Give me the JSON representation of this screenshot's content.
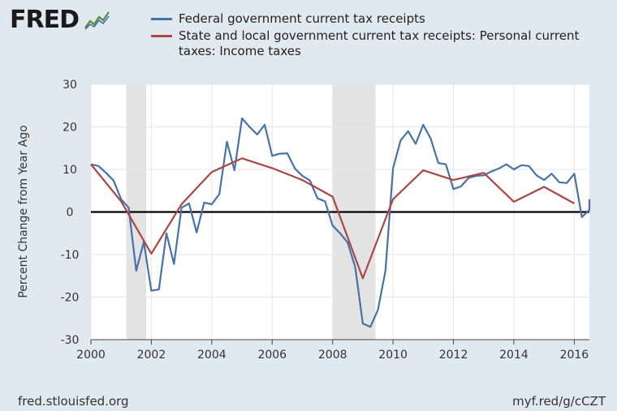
{
  "logo": {
    "text": "FRED"
  },
  "footer": {
    "source": "fred.stlouisfed.org",
    "short_link": "myf.red/g/cCZT"
  },
  "chart_data": {
    "type": "line",
    "ylabel": "Percent Change from Year Ago",
    "xlim": [
      2000,
      2016.5
    ],
    "ylim": [
      -30,
      30
    ],
    "x_ticks": [
      2000,
      2002,
      2004,
      2006,
      2008,
      2010,
      2012,
      2014,
      2016
    ],
    "y_ticks": [
      -30,
      -20,
      -10,
      0,
      10,
      20,
      30
    ],
    "grid": true,
    "legend_position": "top",
    "recessions": [
      [
        2001.17,
        2001.83
      ],
      [
        2008.0,
        2009.42
      ]
    ],
    "series": [
      {
        "name": "Federal government current tax receipts",
        "color": "#4572a7",
        "points": [
          [
            2000.0,
            11.2
          ],
          [
            2000.25,
            10.8
          ],
          [
            2000.5,
            9.2
          ],
          [
            2000.75,
            7.4
          ],
          [
            2001.0,
            3.0
          ],
          [
            2001.25,
            1.0
          ],
          [
            2001.5,
            -13.8
          ],
          [
            2001.75,
            -7.0
          ],
          [
            2002.0,
            -18.5
          ],
          [
            2002.25,
            -18.2
          ],
          [
            2002.5,
            -5.0
          ],
          [
            2002.75,
            -12.2
          ],
          [
            2003.0,
            1.0
          ],
          [
            2003.25,
            2.0
          ],
          [
            2003.5,
            -4.8
          ],
          [
            2003.75,
            2.2
          ],
          [
            2004.0,
            1.8
          ],
          [
            2004.25,
            4.2
          ],
          [
            2004.5,
            16.5
          ],
          [
            2004.75,
            9.8
          ],
          [
            2005.0,
            22.0
          ],
          [
            2005.25,
            20.0
          ],
          [
            2005.5,
            18.2
          ],
          [
            2005.75,
            20.5
          ],
          [
            2006.0,
            13.2
          ],
          [
            2006.25,
            13.7
          ],
          [
            2006.5,
            13.8
          ],
          [
            2006.75,
            10.2
          ],
          [
            2007.0,
            8.5
          ],
          [
            2007.25,
            7.4
          ],
          [
            2007.5,
            3.2
          ],
          [
            2007.75,
            2.5
          ],
          [
            2008.0,
            -3.2
          ],
          [
            2008.25,
            -5.0
          ],
          [
            2008.5,
            -7.2
          ],
          [
            2008.75,
            -13.0
          ],
          [
            2009.0,
            -26.2
          ],
          [
            2009.25,
            -27.0
          ],
          [
            2009.5,
            -23.0
          ],
          [
            2009.75,
            -13.8
          ],
          [
            2010.0,
            10.2
          ],
          [
            2010.25,
            16.8
          ],
          [
            2010.5,
            19.0
          ],
          [
            2010.75,
            16.0
          ],
          [
            2011.0,
            20.5
          ],
          [
            2011.25,
            17.2
          ],
          [
            2011.5,
            11.5
          ],
          [
            2011.75,
            11.2
          ],
          [
            2012.0,
            5.4
          ],
          [
            2012.25,
            6.0
          ],
          [
            2012.5,
            8.0
          ],
          [
            2012.75,
            8.5
          ],
          [
            2013.0,
            8.6
          ],
          [
            2013.25,
            9.5
          ],
          [
            2013.5,
            10.2
          ],
          [
            2013.75,
            11.2
          ],
          [
            2014.0,
            10.0
          ],
          [
            2014.25,
            11.0
          ],
          [
            2014.5,
            10.8
          ],
          [
            2014.75,
            8.6
          ],
          [
            2015.0,
            7.5
          ],
          [
            2015.25,
            9.0
          ],
          [
            2015.5,
            7.0
          ],
          [
            2015.75,
            6.8
          ],
          [
            2016.0,
            9.0
          ],
          [
            2016.25,
            -1.2
          ],
          [
            2016.5,
            0.5
          ],
          [
            2016.75,
            3.0
          ]
        ]
      },
      {
        "name": "State and local government current tax receipts: Personal current taxes: Income taxes",
        "color": "#aa4643",
        "points": [
          [
            2000.0,
            11.2
          ],
          [
            2001.0,
            2.5
          ],
          [
            2002.0,
            -9.8
          ],
          [
            2003.0,
            1.8
          ],
          [
            2004.0,
            9.4
          ],
          [
            2005.0,
            12.6
          ],
          [
            2006.0,
            10.3
          ],
          [
            2007.0,
            7.5
          ],
          [
            2008.0,
            3.6
          ],
          [
            2009.0,
            -15.6
          ],
          [
            2010.0,
            3.0
          ],
          [
            2011.0,
            9.8
          ],
          [
            2012.0,
            7.5
          ],
          [
            2013.0,
            9.2
          ],
          [
            2014.0,
            2.4
          ],
          [
            2015.0,
            5.9
          ],
          [
            2016.0,
            2.0
          ]
        ]
      }
    ]
  }
}
